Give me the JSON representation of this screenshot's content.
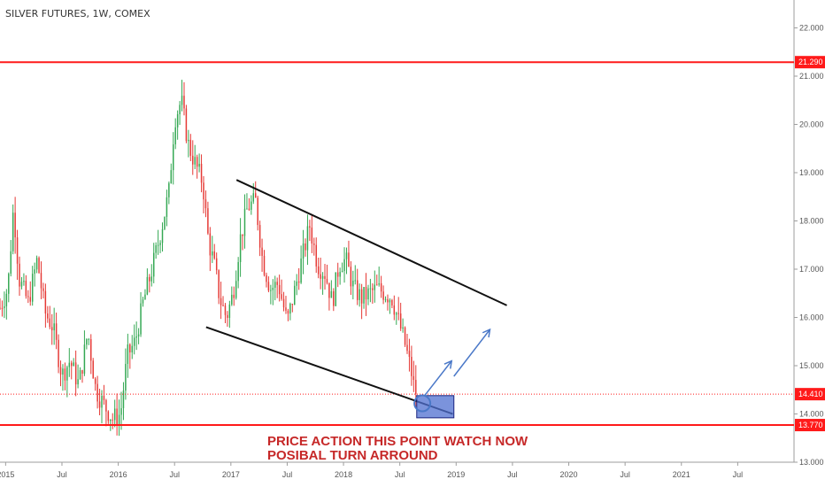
{
  "chart_title": "SILVER FUTURES, 1W, COMEX",
  "annotation": {
    "line1": "PRICE ACTION THIS POINT WATCH NOW",
    "line2": "POSIBAL TURN ARROUND"
  },
  "colors": {
    "up": "#34a853",
    "down": "#e53935",
    "level": "#ff1a1a",
    "trend": "#111111",
    "projection": "#4a78c8",
    "zone": "#4f6fd0"
  },
  "chart_data": {
    "type": "candlestick",
    "title": "SILVER FUTURES, 1W, COMEX",
    "ylim": [
      13.0,
      22.3
    ],
    "y_ticks": [
      "13.000",
      "14.000",
      "15.000",
      "16.000",
      "17.000",
      "18.000",
      "19.000",
      "20.000",
      "21.000",
      "22.000"
    ],
    "x_ticks": [
      {
        "label": "2015",
        "year": 2015.0
      },
      {
        "label": "Jul",
        "year": 2015.5
      },
      {
        "label": "2016",
        "year": 2016.0
      },
      {
        "label": "Jul",
        "year": 2016.5
      },
      {
        "label": "2017",
        "year": 2017.0
      },
      {
        "label": "Jul",
        "year": 2017.5
      },
      {
        "label": "2018",
        "year": 2018.0
      },
      {
        "label": "Jul",
        "year": 2018.5
      },
      {
        "label": "2019",
        "year": 2019.0
      },
      {
        "label": "Jul",
        "year": 2019.5
      },
      {
        "label": "2020",
        "year": 2020.0
      },
      {
        "label": "Jul",
        "year": 2020.5
      },
      {
        "label": "2021",
        "year": 2021.0
      },
      {
        "label": "Jul",
        "year": 2021.5
      }
    ],
    "x_range": [
      2014.95,
      2022.0
    ],
    "price_keypoints": [
      [
        2014.95,
        16.2
      ],
      [
        2015.02,
        16.6
      ],
      [
        2015.07,
        18.3
      ],
      [
        2015.12,
        16.8
      ],
      [
        2015.2,
        16.3
      ],
      [
        2015.28,
        17.2
      ],
      [
        2015.35,
        16.1
      ],
      [
        2015.42,
        15.8
      ],
      [
        2015.5,
        14.8
      ],
      [
        2015.57,
        15.1
      ],
      [
        2015.65,
        14.6
      ],
      [
        2015.73,
        15.7
      ],
      [
        2015.8,
        14.5
      ],
      [
        2015.87,
        14.2
      ],
      [
        2015.95,
        13.9
      ],
      [
        2016.02,
        14.0
      ],
      [
        2016.08,
        15.2
      ],
      [
        2016.15,
        15.5
      ],
      [
        2016.22,
        16.3
      ],
      [
        2016.3,
        17.0
      ],
      [
        2016.38,
        17.8
      ],
      [
        2016.45,
        18.6
      ],
      [
        2016.5,
        20.1
      ],
      [
        2016.56,
        20.5
      ],
      [
        2016.62,
        19.6
      ],
      [
        2016.68,
        19.2
      ],
      [
        2016.75,
        18.8
      ],
      [
        2016.8,
        17.6
      ],
      [
        2016.86,
        17.0
      ],
      [
        2016.9,
        16.4
      ],
      [
        2016.96,
        16.0
      ],
      [
        2017.02,
        16.5
      ],
      [
        2017.08,
        17.6
      ],
      [
        2017.15,
        18.3
      ],
      [
        2017.22,
        18.4
      ],
      [
        2017.28,
        17.2
      ],
      [
        2017.35,
        16.6
      ],
      [
        2017.42,
        16.7
      ],
      [
        2017.5,
        15.9
      ],
      [
        2017.56,
        16.5
      ],
      [
        2017.63,
        17.2
      ],
      [
        2017.7,
        17.9
      ],
      [
        2017.77,
        17.1
      ],
      [
        2017.84,
        16.9
      ],
      [
        2017.9,
        16.3
      ],
      [
        2017.96,
        17.1
      ],
      [
        2018.02,
        17.2
      ],
      [
        2018.09,
        16.6
      ],
      [
        2018.16,
        16.4
      ],
      [
        2018.23,
        16.5
      ],
      [
        2018.3,
        16.6
      ],
      [
        2018.37,
        16.5
      ],
      [
        2018.43,
        16.4
      ],
      [
        2018.48,
        16.0
      ],
      [
        2018.54,
        15.5
      ],
      [
        2018.6,
        14.9
      ],
      [
        2018.63,
        14.5
      ],
      [
        2018.66,
        14.41
      ]
    ],
    "levels": [
      {
        "value": 21.29,
        "label": "21.290"
      },
      {
        "value": 13.77,
        "label": "13.770"
      }
    ],
    "current_price": {
      "value": 14.41,
      "label": "14.410"
    },
    "trendlines": [
      {
        "from": [
          2017.05,
          18.85
        ],
        "to": [
          2019.45,
          16.25
        ]
      },
      {
        "from": [
          2016.78,
          15.8
        ],
        "to": [
          2018.97,
          14.0
        ]
      }
    ],
    "zone": {
      "x0": 2018.65,
      "x1": 2018.98,
      "y0": 13.92,
      "y1": 14.38
    },
    "projection_arrows": [
      {
        "from": [
          2018.72,
          14.38
        ],
        "to": [
          2018.96,
          15.1
        ]
      },
      {
        "from": [
          2018.98,
          14.78
        ],
        "to": [
          2019.3,
          15.75
        ]
      }
    ],
    "circle_marker": [
      2018.7,
      14.22
    ]
  }
}
